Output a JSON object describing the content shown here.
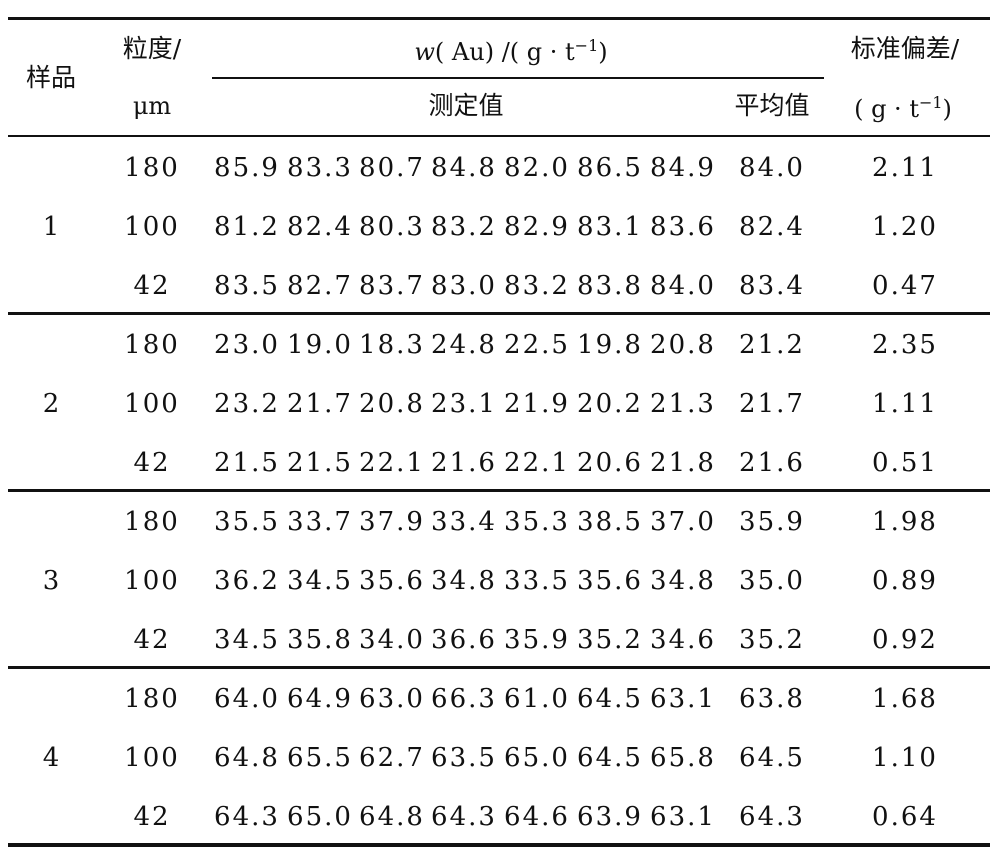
{
  "header": {
    "sample": "样品",
    "size_line1": "粒度/",
    "size_line2": "μm",
    "w_prefix": "w",
    "w_rest": "( Au) /( g · t",
    "w_exp": "−1",
    "w_close": ")",
    "measured": "测定值",
    "mean": "平均值",
    "std_line1": "标准偏差/",
    "std_prefix": "( g · t",
    "std_exp": "−1",
    "std_close": ")"
  },
  "groups": [
    {
      "sample": "1",
      "rows": [
        {
          "size": "180",
          "values": [
            "85.9",
            "83.3",
            "80.7",
            "84.8",
            "82.0",
            "86.5",
            "84.9"
          ],
          "mean": "84.0",
          "std": "2.11"
        },
        {
          "size": "100",
          "values": [
            "81.2",
            "82.4",
            "80.3",
            "83.2",
            "82.9",
            "83.1",
            "83.6"
          ],
          "mean": "82.4",
          "std": "1.20"
        },
        {
          "size": "42",
          "values": [
            "83.5",
            "82.7",
            "83.7",
            "83.0",
            "83.2",
            "83.8",
            "84.0"
          ],
          "mean": "83.4",
          "std": "0.47"
        }
      ]
    },
    {
      "sample": "2",
      "rows": [
        {
          "size": "180",
          "values": [
            "23.0",
            "19.0",
            "18.3",
            "24.8",
            "22.5",
            "19.8",
            "20.8"
          ],
          "mean": "21.2",
          "std": "2.35"
        },
        {
          "size": "100",
          "values": [
            "23.2",
            "21.7",
            "20.8",
            "23.1",
            "21.9",
            "20.2",
            "21.3"
          ],
          "mean": "21.7",
          "std": "1.11"
        },
        {
          "size": "42",
          "values": [
            "21.5",
            "21.5",
            "22.1",
            "21.6",
            "22.1",
            "20.6",
            "21.8"
          ],
          "mean": "21.6",
          "std": "0.51"
        }
      ]
    },
    {
      "sample": "3",
      "rows": [
        {
          "size": "180",
          "values": [
            "35.5",
            "33.7",
            "37.9",
            "33.4",
            "35.3",
            "38.5",
            "37.0"
          ],
          "mean": "35.9",
          "std": "1.98"
        },
        {
          "size": "100",
          "values": [
            "36.2",
            "34.5",
            "35.6",
            "34.8",
            "33.5",
            "35.6",
            "34.8"
          ],
          "mean": "35.0",
          "std": "0.89"
        },
        {
          "size": "42",
          "values": [
            "34.5",
            "35.8",
            "34.0",
            "36.6",
            "35.9",
            "35.2",
            "34.6"
          ],
          "mean": "35.2",
          "std": "0.92"
        }
      ]
    },
    {
      "sample": "4",
      "rows": [
        {
          "size": "180",
          "values": [
            "64.0",
            "64.9",
            "63.0",
            "66.3",
            "61.0",
            "64.5",
            "63.1"
          ],
          "mean": "63.8",
          "std": "1.68"
        },
        {
          "size": "100",
          "values": [
            "64.8",
            "65.5",
            "62.7",
            "63.5",
            "65.0",
            "64.5",
            "65.8"
          ],
          "mean": "64.5",
          "std": "1.10"
        },
        {
          "size": "42",
          "values": [
            "64.3",
            "65.0",
            "64.8",
            "64.3",
            "64.6",
            "63.9",
            "63.1"
          ],
          "mean": "64.3",
          "std": "0.64"
        }
      ]
    }
  ]
}
